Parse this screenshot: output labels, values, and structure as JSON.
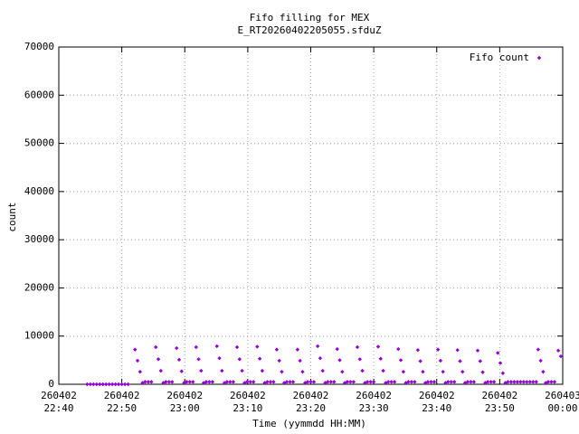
{
  "chart_data": {
    "type": "scatter",
    "title": "Fifo filling for MEX",
    "subtitle": "E_RT20260402205055.sfduZ",
    "x_label": "Time (yymmdd HH:MM)",
    "y_label": "count",
    "grid": true,
    "legend": "top right",
    "xlim": [
      1360,
      1440
    ],
    "xticks": [
      {
        "value": 1360,
        "label": "260402\n22:40"
      },
      {
        "value": 1370,
        "label": "260402\n22:50"
      },
      {
        "value": 1380,
        "label": "260402\n23:00"
      },
      {
        "value": 1390,
        "label": "260402\n23:10"
      },
      {
        "value": 1400,
        "label": "260402\n23:20"
      },
      {
        "value": 1410,
        "label": "260402\n23:30"
      },
      {
        "value": 1420,
        "label": "260402\n23:40"
      },
      {
        "value": 1430,
        "label": "260402\n23:50"
      },
      {
        "value": 1440,
        "label": "260403\n00:00"
      }
    ],
    "ylim": [
      0,
      70000
    ],
    "yticks": [
      0,
      10000,
      20000,
      30000,
      40000,
      50000,
      60000,
      70000
    ],
    "x": [
      1364.5,
      1365,
      1365.5,
      1366,
      1366.5,
      1367,
      1367.5,
      1368,
      1368.5,
      1369,
      1369.5,
      1370,
      1370.5,
      1371,
      1372.1,
      1372.5,
      1372.9,
      1373.3,
      1373.7,
      1374.2,
      1374.7,
      1375.4,
      1375.8,
      1376.2,
      1376.6,
      1377.0,
      1377.5,
      1378.0,
      1378.7,
      1379.1,
      1379.5,
      1379.9,
      1380.3,
      1380.8,
      1381.3,
      1381.8,
      1382.2,
      1382.6,
      1383.0,
      1383.4,
      1383.9,
      1384.4,
      1385.1,
      1385.5,
      1385.9,
      1386.3,
      1386.7,
      1387.2,
      1387.7,
      1388.3,
      1388.7,
      1389.1,
      1389.5,
      1389.9,
      1390.4,
      1390.9,
      1391.5,
      1391.9,
      1392.3,
      1392.7,
      1393.1,
      1393.6,
      1394.1,
      1394.6,
      1395.0,
      1395.4,
      1395.8,
      1396.2,
      1396.7,
      1397.2,
      1397.9,
      1398.3,
      1398.7,
      1399.1,
      1399.5,
      1400.0,
      1400.5,
      1401.1,
      1401.5,
      1401.9,
      1402.3,
      1402.7,
      1403.2,
      1403.7,
      1404.2,
      1404.6,
      1405.0,
      1405.4,
      1405.8,
      1406.3,
      1406.8,
      1407.4,
      1407.8,
      1408.2,
      1408.6,
      1409.0,
      1409.5,
      1410.0,
      1410.7,
      1411.1,
      1411.5,
      1411.9,
      1412.3,
      1412.8,
      1413.3,
      1413.9,
      1414.3,
      1414.7,
      1415.1,
      1415.5,
      1416.0,
      1416.5,
      1417.0,
      1417.4,
      1417.8,
      1418.2,
      1418.6,
      1419.1,
      1419.6,
      1420.2,
      1420.6,
      1421.0,
      1421.4,
      1421.8,
      1422.3,
      1422.8,
      1423.3,
      1423.7,
      1424.1,
      1424.5,
      1424.9,
      1425.4,
      1425.9,
      1426.5,
      1426.9,
      1427.3,
      1427.7,
      1428.1,
      1428.6,
      1429.1,
      1429.7,
      1430.1,
      1430.5,
      1430.9,
      1431.3,
      1431.8,
      1432.3,
      1432.8,
      1433.3,
      1433.8,
      1434.3,
      1434.8,
      1435.3,
      1435.8,
      1436.1,
      1436.5,
      1436.9,
      1437.3,
      1437.7,
      1438.2,
      1438.7,
      1439.3,
      1439.7
    ],
    "series": [
      {
        "name": "Fifo count",
        "color": "#9400d3",
        "values": [
          0,
          0,
          0,
          0,
          0,
          0,
          0,
          0,
          0,
          0,
          0,
          0,
          0,
          0,
          7200,
          4900,
          2600,
          300,
          500,
          500,
          500,
          7700,
          5200,
          2800,
          300,
          500,
          500,
          500,
          7500,
          5100,
          2700,
          300,
          500,
          500,
          500,
          7700,
          5200,
          2800,
          300,
          500,
          500,
          500,
          7900,
          5400,
          2800,
          300,
          500,
          500,
          500,
          7700,
          5200,
          2800,
          300,
          500,
          500,
          500,
          7800,
          5300,
          2800,
          300,
          500,
          500,
          500,
          7200,
          4900,
          2600,
          300,
          500,
          500,
          500,
          7200,
          4900,
          2600,
          300,
          500,
          500,
          500,
          7900,
          5400,
          2800,
          300,
          500,
          500,
          500,
          7300,
          5000,
          2600,
          300,
          500,
          500,
          500,
          7700,
          5200,
          2800,
          300,
          500,
          500,
          500,
          7800,
          5300,
          2800,
          300,
          500,
          500,
          500,
          7300,
          5000,
          2600,
          300,
          500,
          500,
          500,
          7100,
          4800,
          2600,
          300,
          500,
          500,
          500,
          7200,
          4900,
          2600,
          300,
          500,
          500,
          500,
          7100,
          4800,
          2600,
          300,
          500,
          500,
          500,
          7000,
          4800,
          2500,
          300,
          500,
          500,
          500,
          6500,
          4400,
          2300,
          300,
          500,
          500,
          500,
          500,
          500,
          500,
          500,
          500,
          500,
          500,
          7200,
          4900,
          2600,
          300,
          500,
          500,
          500,
          7000,
          5800
        ]
      }
    ]
  }
}
